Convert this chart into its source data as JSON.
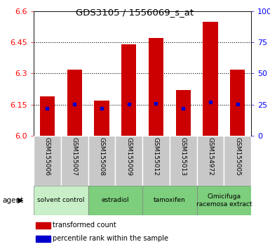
{
  "title": "GDS3105 / 1556069_s_at",
  "samples": [
    "GSM155006",
    "GSM155007",
    "GSM155008",
    "GSM155009",
    "GSM155012",
    "GSM155013",
    "GSM154972",
    "GSM155005"
  ],
  "bar_tops": [
    6.19,
    6.32,
    6.17,
    6.44,
    6.47,
    6.22,
    6.55,
    6.32
  ],
  "bar_base": 6.0,
  "blue_markers": [
    6.132,
    6.152,
    6.132,
    6.152,
    6.156,
    6.132,
    6.162,
    6.152
  ],
  "ylim": [
    6.0,
    6.6
  ],
  "yticks_left": [
    6.0,
    6.15,
    6.3,
    6.45,
    6.6
  ],
  "yticks_right": [
    0,
    25,
    50,
    75,
    100
  ],
  "bar_color": "#cc0000",
  "blue_color": "#0000cc",
  "bar_width": 0.55,
  "groups": [
    {
      "label": "solvent control",
      "start": 0,
      "end": 2,
      "color": "#c8efc8"
    },
    {
      "label": "estradiol",
      "start": 2,
      "end": 4,
      "color": "#7dce7d"
    },
    {
      "label": "tamoxifen",
      "start": 4,
      "end": 6,
      "color": "#7dce7d"
    },
    {
      "label": "Cimicifuga\nracemosa extract",
      "start": 6,
      "end": 8,
      "color": "#7dce7d"
    }
  ],
  "legend_red_label": "transformed count",
  "legend_blue_label": "percentile rank within the sample",
  "agent_label": "agent",
  "bg_color": "#ffffff",
  "plot_bg_color": "#ffffff",
  "tick_area_bg": "#c8c8c8",
  "separator_color": "#ffffff",
  "grid_yticks": [
    6.15,
    6.3,
    6.45
  ]
}
